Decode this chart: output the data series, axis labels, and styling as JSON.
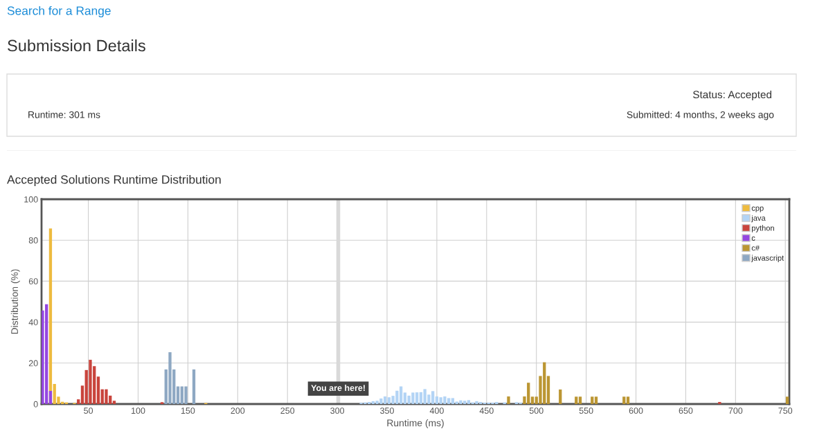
{
  "chart_data": {
    "type": "bar",
    "title": "Accepted Solutions Runtime Distribution",
    "xlabel": "Runtime (ms)",
    "ylabel": "Distribution (%)",
    "annotations": [
      "Search for a Range",
      "Submission Details",
      "Status: Accepted",
      "Runtime: 301 ms",
      "Submitted: 4 months, 2 weeks ago"
    ],
    "series": [
      {
        "name": "cpp",
        "color": "#eebb3f",
        "x": [
          12,
          16,
          20,
          24,
          28,
          36,
          168
        ],
        "values": [
          85.7,
          9.8,
          3.6,
          1.1,
          0.8,
          0.5,
          0.5
        ]
      },
      {
        "name": "java",
        "color": "#b3d4f5",
        "x": [
          324,
          328,
          332,
          336,
          340,
          344,
          348,
          352,
          356,
          360,
          364,
          368,
          372,
          376,
          380,
          384,
          388,
          392,
          396,
          400,
          404,
          408,
          412,
          416,
          420,
          424,
          428,
          432,
          436,
          440,
          444,
          448,
          452,
          456,
          460,
          468,
          480,
          484
        ],
        "values": [
          0.6,
          0.8,
          1.0,
          1.4,
          1.6,
          2.7,
          3.7,
          3.3,
          4.0,
          6.5,
          8.6,
          5.6,
          4.1,
          5.6,
          5.7,
          5.8,
          7.3,
          4.6,
          6.3,
          3.7,
          3.3,
          3.7,
          2.9,
          2.9,
          1.2,
          1.8,
          1.6,
          1.9,
          0.8,
          1.4,
          1.0,
          0.7,
          0.7,
          0.7,
          1.0,
          0.8,
          0.9,
          0.6
        ]
      },
      {
        "name": "python",
        "color": "#c9443c",
        "x": [
          40,
          44,
          48,
          52,
          56,
          60,
          64,
          68,
          72,
          76,
          124,
          684
        ],
        "values": [
          2.3,
          9.0,
          16.6,
          21.6,
          18.5,
          13.4,
          7.2,
          7.2,
          4.1,
          1.6,
          0.9,
          1.0
        ]
      },
      {
        "name": "c",
        "color": "#9447e0",
        "x": [
          4,
          8,
          12
        ],
        "values": [
          45.7,
          48.7,
          6.4
        ]
      },
      {
        "name": "c#",
        "color": "#bb9633",
        "x": [
          472,
          488,
          492,
          496,
          500,
          504,
          508,
          512,
          524,
          540,
          544,
          556,
          560,
          588,
          592,
          752
        ],
        "values": [
          3.7,
          3.7,
          10.4,
          3.6,
          3.6,
          13.7,
          20.4,
          13.7,
          7.1,
          3.6,
          3.6,
          3.6,
          3.6,
          3.6,
          3.6,
          3.6
        ]
      },
      {
        "name": "javascript",
        "color": "#8ea8c3",
        "x": [
          128,
          132,
          136,
          140,
          144,
          148,
          156
        ],
        "values": [
          16.9,
          25.3,
          16.9,
          8.6,
          8.6,
          8.6,
          16.9
        ]
      }
    ],
    "xlim": [
      3,
      754
    ],
    "ylim": [
      0,
      100
    ],
    "xticks": [
      50,
      100,
      150,
      200,
      250,
      300,
      350,
      400,
      450,
      500,
      550,
      600,
      650,
      700,
      750
    ],
    "yticks": [
      0,
      20,
      40,
      60,
      80,
      100
    ],
    "ref_lines": [
      {
        "axis": "x",
        "value": 301,
        "label": "You are here!",
        "color": "#d9d9d9"
      }
    ],
    "grid": true,
    "legend": "top right"
  }
}
